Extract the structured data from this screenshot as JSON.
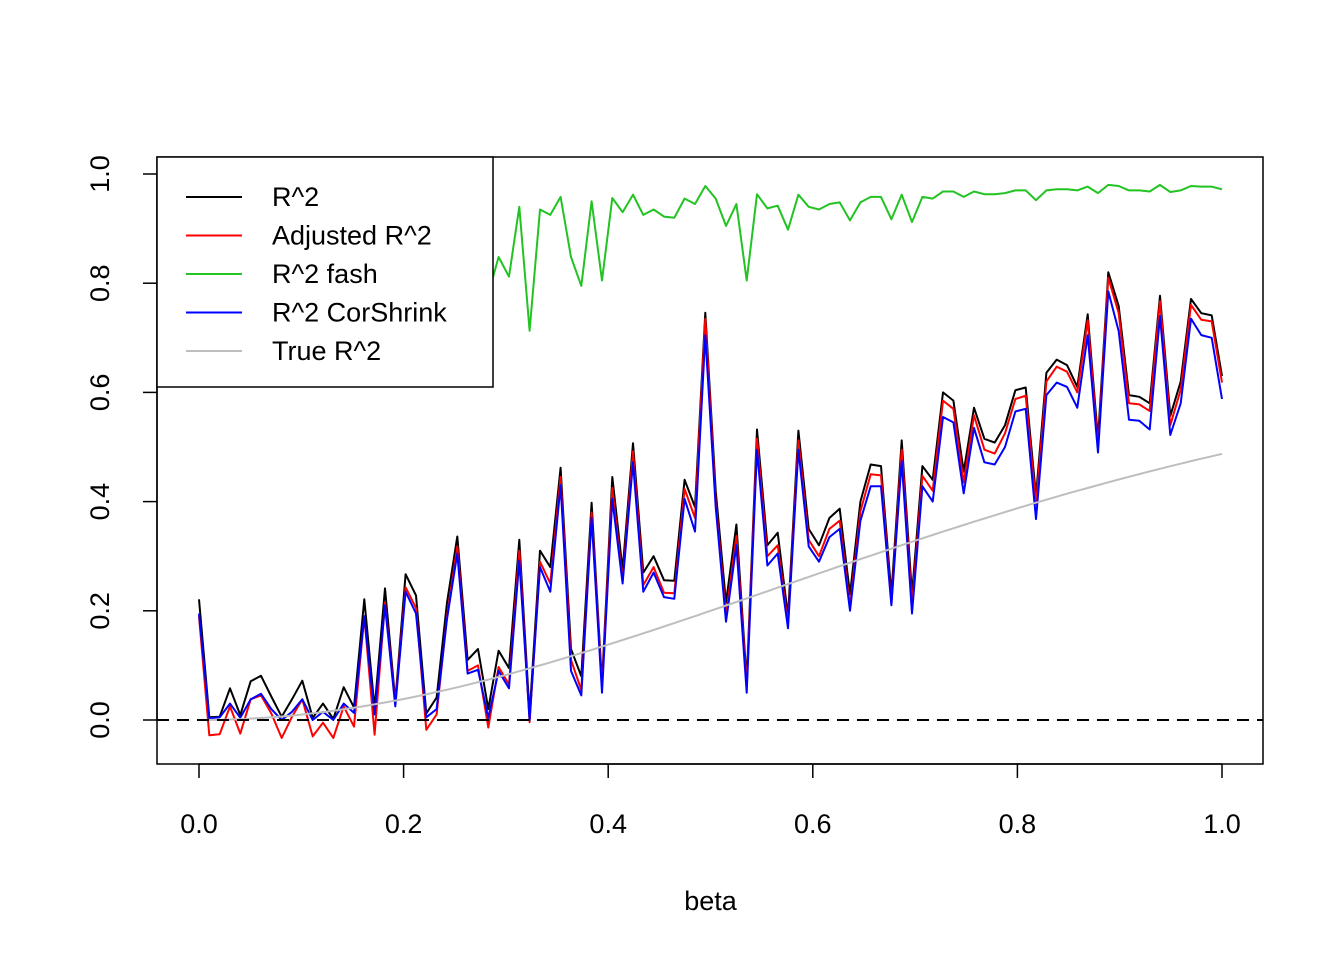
{
  "chart_data": {
    "type": "line",
    "title": "",
    "xlabel": "beta",
    "ylabel": "",
    "xlim": [
      -0.02,
      1.02
    ],
    "ylim": [
      -0.08,
      1.03
    ],
    "x_ticks": [
      0.0,
      0.2,
      0.4,
      0.6,
      0.8,
      1.0
    ],
    "x_tick_labels": [
      "0.0",
      "0.2",
      "0.4",
      "0.6",
      "0.8",
      "1.0"
    ],
    "y_ticks": [
      0.0,
      0.2,
      0.4,
      0.6,
      0.8,
      1.0
    ],
    "y_tick_labels": [
      "0.0",
      "0.2",
      "0.4",
      "0.6",
      "0.8",
      "1.0"
    ],
    "grid": false,
    "legend_position": "top-left",
    "reference_line": {
      "y": 0,
      "style": "dashed",
      "color": "#000000"
    },
    "x": [
      0.0,
      0.0101,
      0.0202,
      0.0303,
      0.0404,
      0.0505,
      0.0606,
      0.0707,
      0.0808,
      0.0909,
      0.101,
      0.1111,
      0.1212,
      0.1313,
      0.1414,
      0.1515,
      0.1616,
      0.1717,
      0.1818,
      0.1919,
      0.202,
      0.2121,
      0.2222,
      0.2323,
      0.2424,
      0.2525,
      0.2626,
      0.2727,
      0.2828,
      0.2929,
      0.303,
      0.3131,
      0.3232,
      0.3333,
      0.3434,
      0.3535,
      0.3636,
      0.3737,
      0.3838,
      0.3939,
      0.404,
      0.4141,
      0.4242,
      0.4343,
      0.4444,
      0.4545,
      0.4646,
      0.4747,
      0.4848,
      0.4949,
      0.5051,
      0.5152,
      0.5253,
      0.5354,
      0.5455,
      0.5556,
      0.5657,
      0.5758,
      0.5859,
      0.596,
      0.6061,
      0.6162,
      0.6263,
      0.6364,
      0.6465,
      0.6566,
      0.6667,
      0.6768,
      0.6869,
      0.697,
      0.7071,
      0.7172,
      0.7273,
      0.7374,
      0.7475,
      0.7576,
      0.7677,
      0.7778,
      0.7879,
      0.798,
      0.8081,
      0.8182,
      0.8283,
      0.8384,
      0.8485,
      0.8586,
      0.8687,
      0.8788,
      0.8889,
      0.899,
      0.9091,
      0.9192,
      0.9293,
      0.9394,
      0.9495,
      0.9596,
      0.9697,
      0.9798,
      0.9899,
      1.0
    ],
    "series": [
      {
        "name": "R^2",
        "color": "#000000",
        "values": [
          0.221,
          0.005,
          0.006,
          0.058,
          0.009,
          0.071,
          0.081,
          0.043,
          0.006,
          0.038,
          0.072,
          0.004,
          0.03,
          0.002,
          0.06,
          0.023,
          0.221,
          0.021,
          0.241,
          0.035,
          0.267,
          0.228,
          0.012,
          0.041,
          0.215,
          0.336,
          0.11,
          0.13,
          0.02,
          0.127,
          0.095,
          0.33,
          0.01,
          0.31,
          0.28,
          0.462,
          0.13,
          0.08,
          0.398,
          0.068,
          0.445,
          0.275,
          0.507,
          0.27,
          0.3,
          0.256,
          0.255,
          0.44,
          0.39,
          0.746,
          0.42,
          0.215,
          0.358,
          0.072,
          0.532,
          0.32,
          0.343,
          0.19,
          0.53,
          0.35,
          0.32,
          0.37,
          0.387,
          0.23,
          0.4,
          0.468,
          0.465,
          0.23,
          0.512,
          0.23,
          0.465,
          0.44,
          0.6,
          0.585,
          0.455,
          0.572,
          0.515,
          0.508,
          0.54,
          0.604,
          0.609,
          0.41,
          0.636,
          0.66,
          0.65,
          0.61,
          0.743,
          0.515,
          0.82,
          0.758,
          0.595,
          0.592,
          0.58,
          0.777,
          0.557,
          0.62,
          0.771,
          0.745,
          0.741,
          0.63
        ]
      },
      {
        "name": "Adjusted R^2",
        "color": "#ff0000",
        "values": [
          0.19,
          -0.028,
          -0.026,
          0.025,
          -0.025,
          0.038,
          0.045,
          0.012,
          -0.033,
          0.006,
          0.038,
          -0.03,
          -0.005,
          -0.033,
          0.025,
          -0.012,
          0.19,
          -0.027,
          0.215,
          0.03,
          0.243,
          0.205,
          -0.018,
          0.01,
          0.19,
          0.318,
          0.09,
          0.1,
          -0.014,
          0.097,
          0.065,
          0.31,
          -0.004,
          0.29,
          0.25,
          0.445,
          0.11,
          0.055,
          0.38,
          0.06,
          0.425,
          0.255,
          0.492,
          0.247,
          0.28,
          0.233,
          0.232,
          0.423,
          0.37,
          0.735,
          0.4,
          0.192,
          0.337,
          0.062,
          0.515,
          0.3,
          0.32,
          0.175,
          0.512,
          0.33,
          0.3,
          0.35,
          0.365,
          0.208,
          0.382,
          0.45,
          0.448,
          0.213,
          0.495,
          0.21,
          0.447,
          0.42,
          0.585,
          0.57,
          0.435,
          0.558,
          0.495,
          0.488,
          0.525,
          0.588,
          0.594,
          0.395,
          0.62,
          0.647,
          0.638,
          0.6,
          0.732,
          0.5,
          0.81,
          0.745,
          0.58,
          0.578,
          0.566,
          0.767,
          0.54,
          0.605,
          0.76,
          0.733,
          0.73,
          0.618
        ]
      },
      {
        "name": "R^2 fash",
        "color": "#22c322",
        "values": [
          null,
          null,
          null,
          null,
          null,
          null,
          null,
          null,
          null,
          null,
          null,
          null,
          null,
          null,
          null,
          null,
          null,
          null,
          null,
          null,
          null,
          null,
          null,
          null,
          null,
          null,
          null,
          null,
          0.78,
          0.848,
          0.812,
          0.94,
          0.713,
          0.935,
          0.925,
          0.958,
          0.848,
          0.795,
          0.95,
          0.805,
          0.956,
          0.93,
          0.962,
          0.925,
          0.935,
          0.922,
          0.92,
          0.955,
          0.945,
          0.978,
          0.955,
          0.905,
          0.945,
          0.805,
          0.963,
          0.937,
          0.942,
          0.898,
          0.962,
          0.94,
          0.935,
          0.945,
          0.948,
          0.915,
          0.948,
          0.958,
          0.958,
          0.917,
          0.962,
          0.912,
          0.958,
          0.955,
          0.968,
          0.968,
          0.958,
          0.968,
          0.963,
          0.963,
          0.965,
          0.97,
          0.97,
          0.952,
          0.97,
          0.972,
          0.972,
          0.97,
          0.977,
          0.965,
          0.98,
          0.978,
          0.97,
          0.97,
          0.968,
          0.98,
          0.967,
          0.97,
          0.978,
          0.977,
          0.977,
          0.972
        ]
      },
      {
        "name": "R^2 CorShrink",
        "color": "#0000ff",
        "values": [
          0.195,
          0.003,
          0.005,
          0.03,
          0.004,
          0.038,
          0.048,
          0.02,
          0.0,
          0.015,
          0.038,
          0.0,
          0.015,
          0.0,
          0.03,
          0.013,
          0.19,
          0.01,
          0.21,
          0.025,
          0.235,
          0.195,
          0.005,
          0.02,
          0.185,
          0.305,
          0.085,
          0.092,
          0.004,
          0.09,
          0.058,
          0.292,
          0.0,
          0.28,
          0.235,
          0.43,
          0.09,
          0.045,
          0.37,
          0.05,
          0.405,
          0.25,
          0.472,
          0.235,
          0.27,
          0.225,
          0.222,
          0.405,
          0.345,
          0.705,
          0.39,
          0.18,
          0.32,
          0.05,
          0.495,
          0.283,
          0.305,
          0.168,
          0.495,
          0.318,
          0.29,
          0.335,
          0.35,
          0.2,
          0.365,
          0.428,
          0.428,
          0.21,
          0.475,
          0.195,
          0.428,
          0.4,
          0.555,
          0.545,
          0.415,
          0.535,
          0.472,
          0.468,
          0.5,
          0.565,
          0.57,
          0.368,
          0.595,
          0.618,
          0.61,
          0.572,
          0.705,
          0.49,
          0.785,
          0.712,
          0.55,
          0.548,
          0.532,
          0.74,
          0.522,
          0.58,
          0.735,
          0.705,
          0.7,
          0.588
        ]
      },
      {
        "name": "True R^2",
        "color": "#bebebe",
        "values": [
          0.0,
          0.0001,
          0.0004,
          0.0009,
          0.0016,
          0.0025,
          0.0036,
          0.0049,
          0.0064,
          0.0081,
          0.0101,
          0.0122,
          0.0145,
          0.0169,
          0.0196,
          0.0224,
          0.0255,
          0.0287,
          0.032,
          0.0355,
          0.0392,
          0.043,
          0.0471,
          0.0512,
          0.0555,
          0.0599,
          0.0645,
          0.0692,
          0.074,
          0.079,
          0.0841,
          0.0893,
          0.0946,
          0.1,
          0.1055,
          0.1111,
          0.1168,
          0.1226,
          0.1284,
          0.1344,
          0.1404,
          0.1465,
          0.1525,
          0.1587,
          0.1649,
          0.1712,
          0.1775,
          0.1839,
          0.1902,
          0.1967,
          0.2032,
          0.2097,
          0.2162,
          0.2227,
          0.2293,
          0.2358,
          0.2424,
          0.2489,
          0.2555,
          0.262,
          0.2686,
          0.2751,
          0.2816,
          0.2881,
          0.2946,
          0.301,
          0.3074,
          0.3138,
          0.3201,
          0.3264,
          0.3327,
          0.3389,
          0.345,
          0.3511,
          0.3572,
          0.3632,
          0.3691,
          0.375,
          0.3808,
          0.3866,
          0.3923,
          0.3979,
          0.4034,
          0.4089,
          0.4144,
          0.4197,
          0.425,
          0.4302,
          0.4354,
          0.4405,
          0.4455,
          0.4504,
          0.4553,
          0.4601,
          0.4648,
          0.4695,
          0.4741,
          0.4786,
          0.483,
          0.4874
        ]
      }
    ]
  }
}
